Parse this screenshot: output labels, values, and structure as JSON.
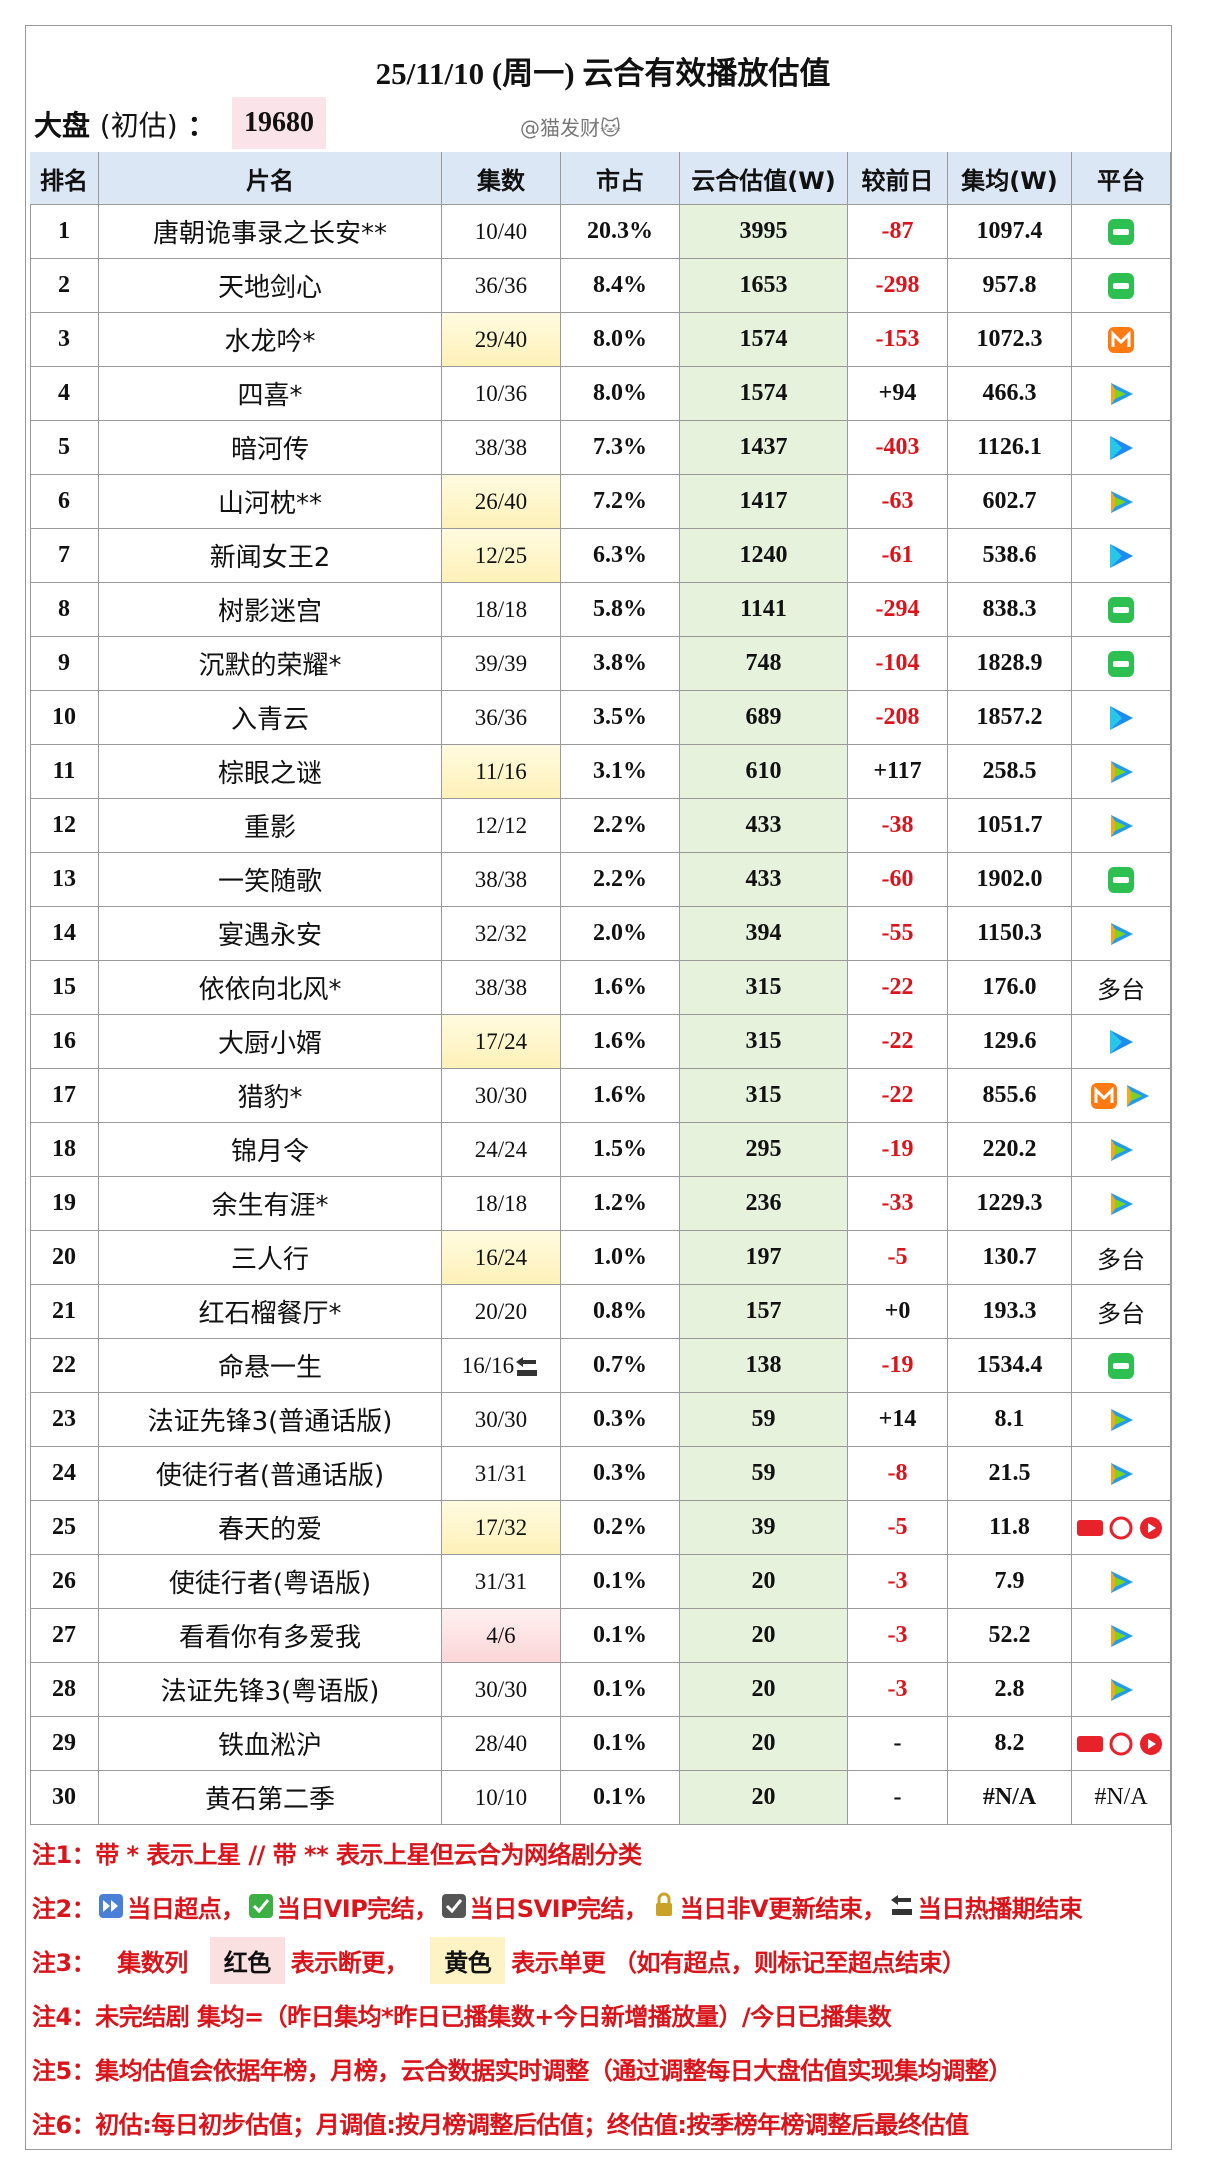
{
  "title": "25/11/10 (周一) 云合有效播放估值",
  "market": {
    "label": "大盘",
    "sub": "(初估)",
    "colon": "：",
    "value": "19680"
  },
  "watermark": "@猫发财🐱",
  "table": {
    "headers": [
      "排名",
      "片名",
      "集数",
      "市占",
      "云合估值(W)",
      "较前日",
      "集均(W)",
      "平台"
    ],
    "rows": [
      [
        "1",
        "唐朝诡事录之长安**",
        "10/40",
        "20.3%",
        "3995",
        "-87",
        "1097.4"
      ],
      [
        "2",
        "天地剑心",
        "36/36",
        "8.4%",
        "1653",
        "-298",
        "957.8"
      ],
      [
        "3",
        "水龙吟*",
        "29/40",
        "8.0%",
        "1574",
        "-153",
        "1072.3"
      ],
      [
        "4",
        "四喜*",
        "10/36",
        "8.0%",
        "1574",
        "+94",
        "466.3"
      ],
      [
        "5",
        "暗河传",
        "38/38",
        "7.3%",
        "1437",
        "-403",
        "1126.1"
      ],
      [
        "6",
        "山河枕**",
        "26/40",
        "7.2%",
        "1417",
        "-63",
        "602.7"
      ],
      [
        "7",
        "新闻女王2",
        "12/25",
        "6.3%",
        "1240",
        "-61",
        "538.6"
      ],
      [
        "8",
        "树影迷宫",
        "18/18",
        "5.8%",
        "1141",
        "-294",
        "838.3"
      ],
      [
        "9",
        "沉默的荣耀*",
        "39/39",
        "3.8%",
        "748",
        "-104",
        "1828.9"
      ],
      [
        "10",
        "入青云",
        "36/36",
        "3.5%",
        "689",
        "-208",
        "1857.2"
      ],
      [
        "11",
        "棕眼之谜",
        "11/16",
        "3.1%",
        "610",
        "+117",
        "258.5"
      ],
      [
        "12",
        "重影",
        "12/12",
        "2.2%",
        "433",
        "-38",
        "1051.7"
      ],
      [
        "13",
        "一笑随歌",
        "38/38",
        "2.2%",
        "433",
        "-60",
        "1902.0"
      ],
      [
        "14",
        "宴遇永安",
        "32/32",
        "2.0%",
        "394",
        "-55",
        "1150.3"
      ],
      [
        "15",
        "依依向北风*",
        "38/38",
        "1.6%",
        "315",
        "-22",
        "176.0"
      ],
      [
        "16",
        "大厨小婿",
        "17/24",
        "1.6%",
        "315",
        "-22",
        "129.6"
      ],
      [
        "17",
        "猎豹*",
        "30/30",
        "1.6%",
        "315",
        "-22",
        "855.6"
      ],
      [
        "18",
        "锦月令",
        "24/24",
        "1.5%",
        "295",
        "-19",
        "220.2"
      ],
      [
        "19",
        "余生有涯*",
        "18/18",
        "1.2%",
        "236",
        "-33",
        "1229.3"
      ],
      [
        "20",
        "三人行",
        "16/24",
        "1.0%",
        "197",
        "-5",
        "130.7"
      ],
      [
        "21",
        "红石榴餐厅*",
        "20/20",
        "0.8%",
        "157",
        "+0",
        "193.3"
      ],
      [
        "22",
        "命悬一生",
        "16/16",
        "0.7%",
        "138",
        "-19",
        "1534.4"
      ],
      [
        "23",
        "法证先锋3(普通话版)",
        "30/30",
        "0.3%",
        "59",
        "+14",
        "8.1"
      ],
      [
        "24",
        "使徒行者(普通话版)",
        "31/31",
        "0.3%",
        "59",
        "-8",
        "21.5"
      ],
      [
        "25",
        "春天的爱",
        "17/32",
        "0.2%",
        "39",
        "-5",
        "11.8"
      ],
      [
        "26",
        "使徒行者(粤语版)",
        "31/31",
        "0.1%",
        "20",
        "-3",
        "7.9"
      ],
      [
        "27",
        "看看你有多爱我",
        "4/6",
        "0.1%",
        "20",
        "-3",
        "52.2"
      ],
      [
        "28",
        "法证先锋3(粤语版)",
        "30/30",
        "0.1%",
        "20",
        "-3",
        "2.8"
      ],
      [
        "29",
        "铁血淞沪",
        "28/40",
        "0.1%",
        "20",
        "-",
        "8.2"
      ],
      [
        "30",
        "黄石第二季",
        "10/10",
        "0.1%",
        "20",
        "-",
        "#N/A"
      ]
    ],
    "platform_labels": {
      "14": "多台",
      "19": "多台",
      "20": "多台",
      "29": "#N/A"
    }
  },
  "notes": [
    {
      "tag": "注1：",
      "text": "带 * 表示上星 // 带 ** 表示上星但云合为网络剧分类"
    },
    {
      "tag": "注2：",
      "parts": [
        "当日超点，",
        "当日VIP完结，",
        "当日SVIP完结，",
        "当日非V更新结束，",
        "当日热播期结束"
      ]
    },
    {
      "tag": "注3：",
      "parts": [
        "集数列",
        "红色",
        "表示断更，",
        "黄色",
        "表示单更 （如有超点，则标记至超点结束）"
      ]
    },
    {
      "tag": "注4：",
      "text": "未完结剧 集均=（昨日集均*昨日已播集数+今日新增播放量）/今日已播集数"
    },
    {
      "tag": "注5：",
      "text": "集均估值会依据年榜，月榜，云合数据实时调整（通过调整每日大盘估值实现集均调整）"
    },
    {
      "tag": "注6：",
      "text": "初估:每日初步估值；月调值:按月榜调整后估值；终估值:按季榜年榜调整后最终估值"
    }
  ]
}
